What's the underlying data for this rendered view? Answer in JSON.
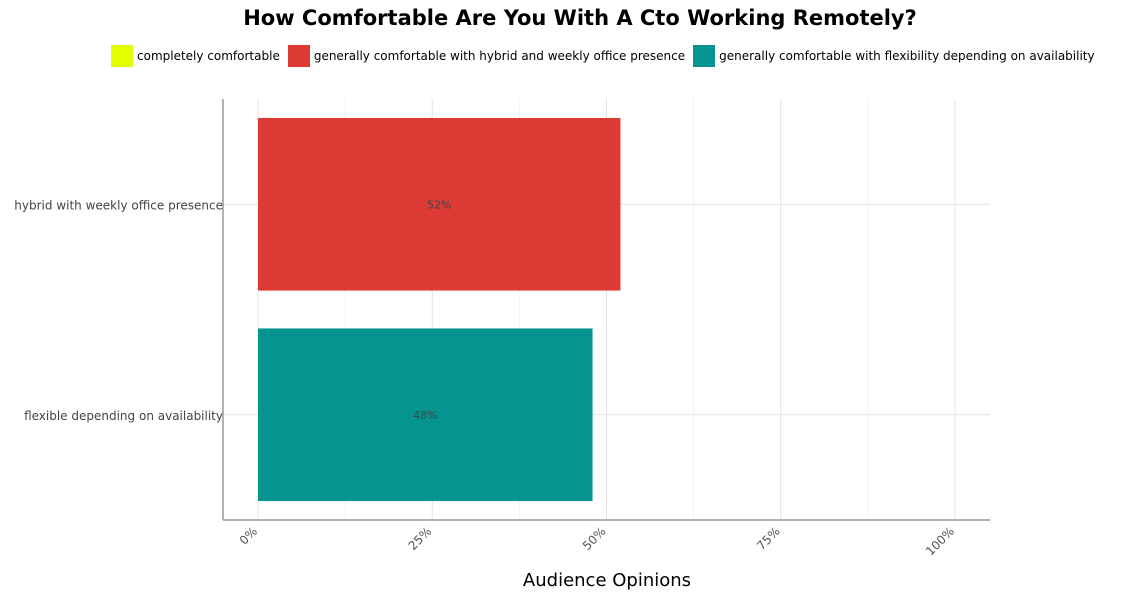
{
  "chart_data": {
    "type": "bar",
    "orientation": "horizontal",
    "title": "How Comfortable Are You With A Cto Working Remotely?",
    "xlabel": "Audience Opinions",
    "ylabel": "",
    "xlim": [
      0,
      100
    ],
    "xticks": [
      "0%",
      "25%",
      "50%",
      "75%",
      "100%"
    ],
    "grid": true,
    "legend_position": "top",
    "legend": [
      {
        "label": "completely comfortable",
        "color": "#e3ff00"
      },
      {
        "label": "generally comfortable with hybrid and weekly office presence",
        "color": "#dc3a35"
      },
      {
        "label": "generally comfortable with flexibility depending on availability",
        "color": "#069491"
      }
    ],
    "categories": [
      "hybrid with weekly office presence",
      "flexible depending on availability"
    ],
    "values": [
      52,
      48
    ],
    "data_labels": [
      "52%",
      "48%"
    ],
    "colors": [
      "#dc3a35",
      "#069491"
    ]
  }
}
